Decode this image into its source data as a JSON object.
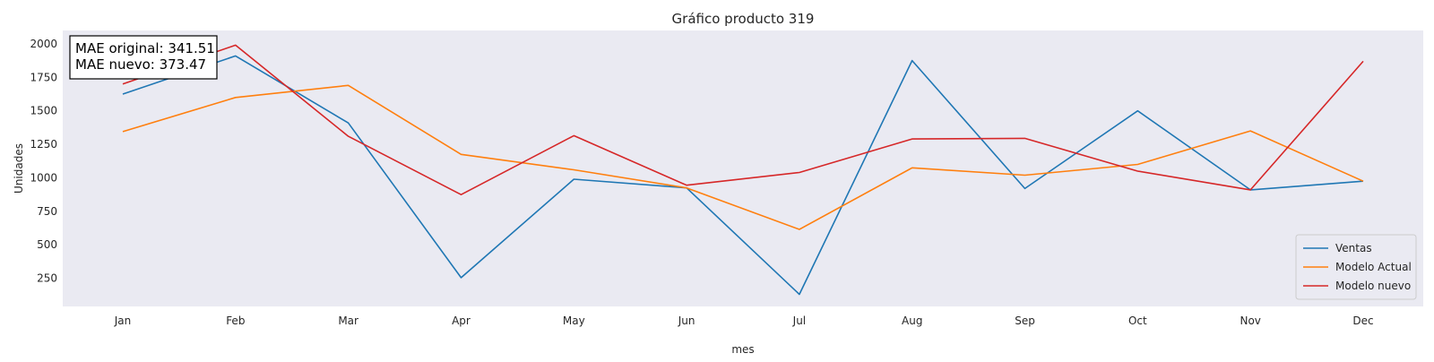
{
  "chart_data": {
    "type": "line",
    "title": "Gráfico producto 319",
    "xlabel": "mes",
    "ylabel": "Unidades",
    "categories": [
      "Jan",
      "Feb",
      "Mar",
      "Apr",
      "May",
      "Jun",
      "Jul",
      "Aug",
      "Sep",
      "Oct",
      "Nov",
      "Dec"
    ],
    "yticks": [
      250,
      500,
      750,
      1000,
      1250,
      1500,
      1750,
      2000
    ],
    "ylim": [
      40,
      2100
    ],
    "grid": false,
    "background_color": "#eaeaf2",
    "legend_position": "lower right",
    "series": [
      {
        "name": "Ventas",
        "color": "#1f77b4",
        "values": [
          1625,
          1910,
          1410,
          255,
          990,
          925,
          130,
          1875,
          920,
          1500,
          910,
          975
        ]
      },
      {
        "name": "Modelo Actual",
        "color": "#ff7f0e",
        "values": [
          1345,
          1600,
          1690,
          1175,
          1060,
          925,
          615,
          1075,
          1020,
          1100,
          1350,
          975
        ]
      },
      {
        "name": "Modelo nuevo",
        "color": "#d62728",
        "values": [
          1700,
          1990,
          1310,
          875,
          1315,
          945,
          1040,
          1290,
          1295,
          1050,
          910,
          1870
        ]
      }
    ],
    "annotation": {
      "lines": [
        "MAE original: 341.51",
        "MAE nuevo: 373.47"
      ]
    }
  }
}
